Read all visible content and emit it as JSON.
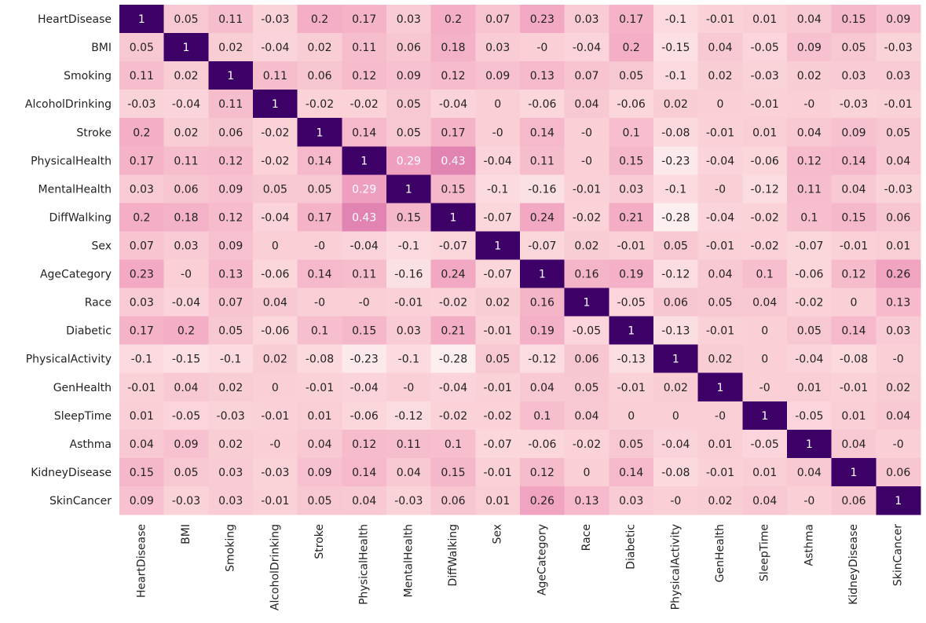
{
  "chart_data": {
    "type": "heatmap",
    "title": "",
    "xlabel": "",
    "ylabel": "",
    "labels": [
      "HeartDisease",
      "BMI",
      "Smoking",
      "AlcoholDrinking",
      "Stroke",
      "PhysicalHealth",
      "MentalHealth",
      "DiffWalking",
      "Sex",
      "AgeCategory",
      "Race",
      "Diabetic",
      "PhysicalActivity",
      "GenHealth",
      "SleepTime",
      "Asthma",
      "KidneyDisease",
      "SkinCancer"
    ],
    "values": [
      [
        1,
        0.05,
        0.11,
        -0.03,
        0.2,
        0.17,
        0.03,
        0.2,
        0.07,
        0.23,
        0.03,
        0.17,
        -0.1,
        -0.01,
        0.01,
        0.04,
        0.15,
        0.09
      ],
      [
        0.05,
        1,
        0.02,
        -0.04,
        0.02,
        0.11,
        0.06,
        0.18,
        0.03,
        0,
        -0.04,
        0.2,
        -0.15,
        0.04,
        -0.05,
        0.09,
        0.05,
        -0.03
      ],
      [
        0.11,
        0.02,
        1,
        0.11,
        0.06,
        0.12,
        0.09,
        0.12,
        0.09,
        0.13,
        0.07,
        0.05,
        -0.1,
        0.02,
        -0.03,
        0.02,
        0.03,
        0.03
      ],
      [
        -0.03,
        -0.04,
        0.11,
        1,
        -0.02,
        -0.02,
        0.05,
        -0.04,
        0,
        -0.06,
        0.04,
        -0.06,
        0.02,
        0,
        -0.01,
        0,
        -0.03,
        -0.01
      ],
      [
        0.2,
        0.02,
        0.06,
        -0.02,
        1,
        0.14,
        0.05,
        0.17,
        0,
        0.14,
        0,
        0.1,
        -0.08,
        -0.01,
        0.01,
        0.04,
        0.09,
        0.05
      ],
      [
        0.17,
        0.11,
        0.12,
        -0.02,
        0.14,
        1,
        0.29,
        0.43,
        -0.04,
        0.11,
        0,
        0.15,
        -0.23,
        -0.04,
        -0.06,
        0.12,
        0.14,
        0.04
      ],
      [
        0.03,
        0.06,
        0.09,
        0.05,
        0.05,
        0.29,
        1,
        0.15,
        -0.1,
        -0.16,
        -0.01,
        0.03,
        -0.1,
        0,
        -0.12,
        0.11,
        0.04,
        -0.03
      ],
      [
        0.2,
        0.18,
        0.12,
        -0.04,
        0.17,
        0.43,
        0.15,
        1,
        -0.07,
        0.24,
        -0.02,
        0.21,
        -0.28,
        -0.04,
        -0.02,
        0.1,
        0.15,
        0.06
      ],
      [
        0.07,
        0.03,
        0.09,
        0,
        0,
        -0.04,
        -0.1,
        -0.07,
        1,
        -0.07,
        0.02,
        -0.01,
        0.05,
        -0.01,
        -0.02,
        -0.07,
        -0.01,
        0.01
      ],
      [
        0.23,
        0,
        0.13,
        -0.06,
        0.14,
        0.11,
        -0.16,
        0.24,
        -0.07,
        1,
        0.16,
        0.19,
        -0.12,
        0.04,
        0.1,
        -0.06,
        0.12,
        0.26
      ],
      [
        0.03,
        -0.04,
        0.07,
        0.04,
        0,
        0,
        -0.01,
        -0.02,
        0.02,
        0.16,
        1,
        -0.05,
        0.06,
        0.05,
        0.04,
        -0.02,
        0,
        0.13
      ],
      [
        0.17,
        0.2,
        0.05,
        -0.06,
        0.1,
        0.15,
        0.03,
        0.21,
        -0.01,
        0.19,
        -0.05,
        1,
        -0.13,
        -0.01,
        0,
        0.05,
        0.14,
        0.03
      ],
      [
        -0.1,
        -0.15,
        -0.1,
        0.02,
        -0.08,
        -0.23,
        -0.1,
        -0.28,
        0.05,
        -0.12,
        0.06,
        -0.13,
        1,
        0.02,
        0,
        -0.04,
        -0.08,
        0
      ],
      [
        -0.01,
        0.04,
        0.02,
        0,
        -0.01,
        -0.04,
        0,
        -0.04,
        -0.01,
        0.04,
        0.05,
        -0.01,
        0.02,
        1,
        0,
        0.01,
        -0.01,
        0.02
      ],
      [
        0.01,
        -0.05,
        -0.03,
        -0.01,
        0.01,
        -0.06,
        -0.12,
        -0.02,
        -0.02,
        0.1,
        0.04,
        0,
        0,
        0,
        1,
        -0.05,
        0.01,
        0.04
      ],
      [
        0.04,
        0.09,
        0.02,
        0,
        0.04,
        0.12,
        0.11,
        0.1,
        -0.07,
        -0.06,
        -0.02,
        0.05,
        -0.04,
        0.01,
        -0.05,
        1,
        0.04,
        0
      ],
      [
        0.15,
        0.05,
        0.03,
        -0.03,
        0.09,
        0.14,
        0.04,
        0.15,
        -0.01,
        0.12,
        0,
        0.14,
        -0.08,
        -0.01,
        0.01,
        0.04,
        1,
        0.06
      ],
      [
        0.09,
        -0.03,
        0.03,
        -0.01,
        0.05,
        0.04,
        -0.03,
        0.06,
        0.01,
        0.26,
        0.13,
        0.03,
        0,
        0.02,
        0.04,
        0,
        0.06,
        1
      ]
    ],
    "colors": {
      "low": "#fdf0f1",
      "mid": "#f2a6c2",
      "high_mid": "#e080b0",
      "diagonal": "#3d0066",
      "text_dark": "#222222",
      "text_light": "#ffffff"
    }
  }
}
